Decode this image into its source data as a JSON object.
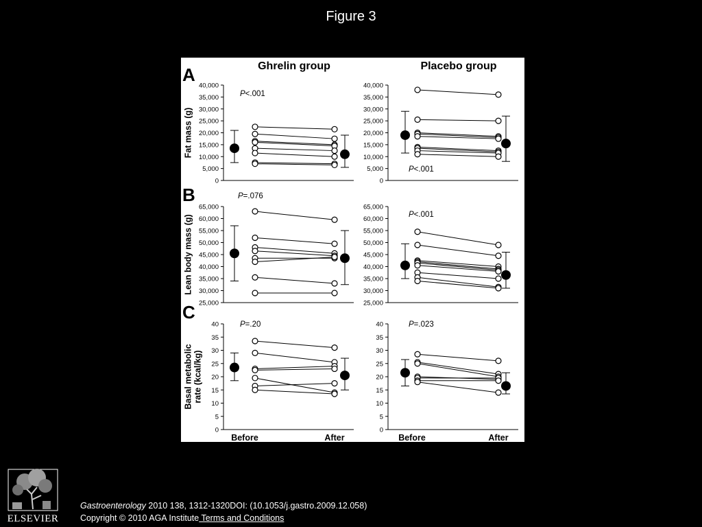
{
  "slide": {
    "title": "Figure 3"
  },
  "citation": {
    "journal": "Gastroenterology",
    "details": " 2010 138, 1312-1320DOI: (10.1053/j.gastro.2009.12.058)"
  },
  "copyright": {
    "text": "Copyright © 2010 AGA Institute",
    "link": " Terms and Conditions"
  },
  "logo": {
    "text": "ELSEVIER",
    "icon": "tree-logo-icon"
  },
  "chart_data": {
    "type": "scatter",
    "column_headers": [
      "Ghrelin group",
      "Placebo group"
    ],
    "x_categories": [
      "Before",
      "After"
    ],
    "panels": [
      {
        "letter": "A",
        "ylabel": [
          "Fat mass (g)"
        ],
        "ylim": [
          0,
          40000
        ],
        "yticks": [
          0,
          5000,
          10000,
          15000,
          20000,
          25000,
          30000,
          35000,
          40000
        ],
        "ytick_labels": [
          "0",
          "5,000",
          "10,000",
          "15,000",
          "20,000",
          "25,000",
          "30,000",
          "35,000",
          "40,000"
        ],
        "groups": [
          {
            "p_prefix": "P",
            "p_value": "<.001",
            "p_pos": "top",
            "individuals": [
              [
                22500,
                21500
              ],
              [
                19500,
                17500
              ],
              [
                16500,
                15000
              ],
              [
                16000,
                14500
              ],
              [
                13500,
                12500
              ],
              [
                11500,
                10000
              ],
              [
                7500,
                7000
              ],
              [
                7000,
                6500
              ]
            ],
            "mean_before": 13500,
            "sd_before": [
              7500,
              21000
            ],
            "mean_after": 11000,
            "sd_after": [
              5500,
              19000
            ]
          },
          {
            "p_prefix": "P",
            "p_value": "<.001",
            "p_pos": "bottom",
            "individuals": [
              [
                38000,
                36000
              ],
              [
                25500,
                25000
              ],
              [
                20000,
                18500
              ],
              [
                19500,
                18000
              ],
              [
                18500,
                17500
              ],
              [
                14000,
                12500
              ],
              [
                13500,
                12000
              ],
              [
                12500,
                11500
              ],
              [
                11000,
                10000
              ]
            ],
            "mean_before": 19000,
            "sd_before": [
              11500,
              29000
            ],
            "mean_after": 15500,
            "sd_after": [
              8000,
              27000
            ]
          }
        ]
      },
      {
        "letter": "B",
        "ylabel": [
          "Lean body mass (g)"
        ],
        "ylim": [
          25000,
          65000
        ],
        "yticks": [
          25000,
          30000,
          35000,
          40000,
          45000,
          50000,
          55000,
          60000,
          65000
        ],
        "ytick_labels": [
          "25,000",
          "30,000",
          "35,000",
          "40,000",
          "45,000",
          "50,000",
          "55,000",
          "60,000",
          "65,000"
        ],
        "groups": [
          {
            "p_prefix": "P",
            "p_value": "=.076",
            "p_pos": "top",
            "individuals": [
              [
                63000,
                59500
              ],
              [
                52000,
                49500
              ],
              [
                48000,
                45500
              ],
              [
                46500,
                44500
              ],
              [
                43500,
                43500
              ],
              [
                42000,
                44000
              ],
              [
                35500,
                33000
              ],
              [
                29000,
                29000
              ]
            ],
            "mean_before": 45500,
            "sd_before": [
              34000,
              57000
            ],
            "mean_after": 43500,
            "sd_after": [
              32500,
              55000
            ]
          },
          {
            "p_prefix": "P",
            "p_value": "<.001",
            "p_pos": "top",
            "individuals": [
              [
                54500,
                49000
              ],
              [
                49000,
                44500
              ],
              [
                42500,
                40000
              ],
              [
                42000,
                39000
              ],
              [
                41500,
                38500
              ],
              [
                40500,
                38000
              ],
              [
                37500,
                35000
              ],
              [
                35500,
                31500
              ],
              [
                34000,
                31000
              ]
            ],
            "mean_before": 40500,
            "sd_before": [
              35000,
              49500
            ],
            "mean_after": 36500,
            "sd_after": [
              31000,
              46000
            ]
          }
        ]
      },
      {
        "letter": "C",
        "ylabel": [
          "Basal metabolic",
          "rate (kcal/kg)"
        ],
        "ylim": [
          0,
          40
        ],
        "yticks": [
          0,
          5,
          10,
          15,
          20,
          25,
          30,
          35,
          40
        ],
        "ytick_labels": [
          "0",
          "5",
          "10",
          "15",
          "20",
          "25",
          "30",
          "35",
          "40"
        ],
        "groups": [
          {
            "p_prefix": "P",
            "p_value": "=.20",
            "p_pos": "top",
            "individuals": [
              [
                33.5,
                31
              ],
              [
                29,
                25.5
              ],
              [
                23,
                24
              ],
              [
                22.5,
                23
              ],
              [
                19.5,
                14
              ],
              [
                16.5,
                17.5
              ],
              [
                15,
                13.5
              ]
            ],
            "mean_before": 23.5,
            "sd_before": [
              18.5,
              29
            ],
            "mean_after": 20.5,
            "sd_after": [
              15,
              27
            ]
          },
          {
            "p_prefix": "P",
            "p_value": "=.023",
            "p_pos": "top",
            "individuals": [
              [
                28.5,
                26
              ],
              [
                25.5,
                21
              ],
              [
                25,
                20
              ],
              [
                20,
                19
              ],
              [
                19.5,
                19.5
              ],
              [
                18.5,
                18.5
              ],
              [
                18,
                14
              ]
            ],
            "mean_before": 21.5,
            "sd_before": [
              16.5,
              26.5
            ],
            "mean_after": 16.5,
            "sd_after": [
              13.5,
              21.5
            ]
          }
        ]
      }
    ]
  }
}
